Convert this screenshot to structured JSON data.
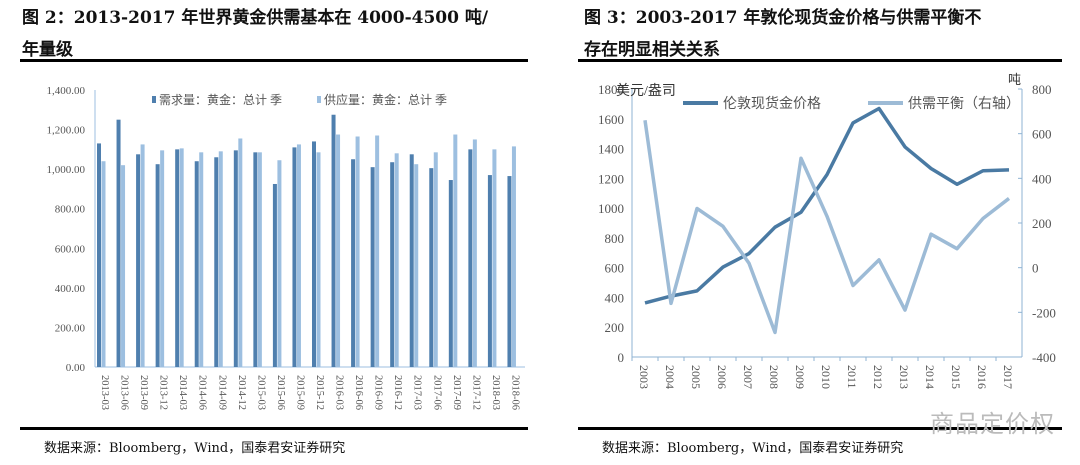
{
  "left": {
    "title": "图 2：2013-2017 年世界黄金供需基本在 4000-4500 吨/年量级",
    "title_line1": "图 2：2013-2017 年世界黄金供需基本在 4000-4500 吨/",
    "title_line2": "年量级",
    "source": "数据来源：Bloomberg，Wind，国泰君安证券研究"
  },
  "right": {
    "title": "图 3：2003-2017 年敦伦现货金价格与供需平衡不存在明显相关关系",
    "title_line1": "图 3：2003-2017 年敦伦现货金价格与供需平衡不",
    "title_line2": "存在明显相关关系",
    "source": "数据来源：Bloomberg，Wind，国泰君安证券研究"
  },
  "watermark": "商品定价权",
  "chart_data": [
    {
      "type": "bar",
      "categories": [
        "2013-03",
        "2013-06",
        "2013-09",
        "2013-12",
        "2014-03",
        "2014-06",
        "2014-09",
        "2014-12",
        "2015-03",
        "2015-06",
        "2015-09",
        "2015-12",
        "2016-03",
        "2016-06",
        "2016-09",
        "2016-12",
        "2017-03",
        "2017-06",
        "2017-09",
        "2017-12",
        "2018-03",
        "2018-06"
      ],
      "series": [
        {
          "name": "需求量：黄金：总计 季",
          "color": "#4f7fae",
          "values": [
            1130,
            1250,
            1075,
            1025,
            1100,
            1040,
            1060,
            1095,
            1085,
            925,
            1110,
            1140,
            1275,
            1050,
            1010,
            1035,
            1075,
            1005,
            945,
            1100,
            970,
            965
          ]
        },
        {
          "name": "供应量：黄金：总计 季",
          "color": "#9dbfe0",
          "values": [
            1040,
            1020,
            1125,
            1095,
            1105,
            1085,
            1090,
            1155,
            1085,
            1045,
            1125,
            1085,
            1175,
            1165,
            1170,
            1080,
            1025,
            1085,
            1175,
            1150,
            1100,
            1115
          ]
        }
      ],
      "ylim": [
        0,
        1400
      ],
      "yticks": [
        "0.00",
        "200.00",
        "400.00",
        "600.00",
        "800.00",
        "1,000.00",
        "1,200.00",
        "1,400.00"
      ],
      "legend": "top",
      "grid": false
    },
    {
      "type": "line",
      "categories": [
        "2003",
        "2004",
        "2005",
        "2006",
        "2007",
        "2008",
        "2009",
        "2010",
        "2011",
        "2012",
        "2013",
        "2014",
        "2015",
        "2016",
        "2017"
      ],
      "series": [
        {
          "name": "伦敦现货金价格",
          "axis": "left",
          "color": "#4a7aa3",
          "values": [
            363,
            409,
            444,
            604,
            695,
            872,
            972,
            1225,
            1572,
            1669,
            1411,
            1266,
            1160,
            1251,
            1257
          ]
        },
        {
          "name": "供需平衡（右轴）",
          "axis": "right",
          "color": "#9dbbd6",
          "values": [
            660,
            -160,
            265,
            185,
            20,
            -290,
            490,
            230,
            -80,
            35,
            -190,
            150,
            85,
            220,
            310
          ]
        }
      ],
      "ylabel": "美元/盎司",
      "y2label": "吨",
      "ylim": [
        0,
        1800
      ],
      "y2lim": [
        -400,
        800
      ],
      "yticks": [
        "0",
        "200",
        "400",
        "600",
        "800",
        "1000",
        "1200",
        "1400",
        "1600",
        "1800"
      ],
      "y2ticks": [
        "-400",
        "-200",
        "0",
        "200",
        "400",
        "600",
        "800"
      ],
      "legend": "top",
      "grid": false
    }
  ]
}
